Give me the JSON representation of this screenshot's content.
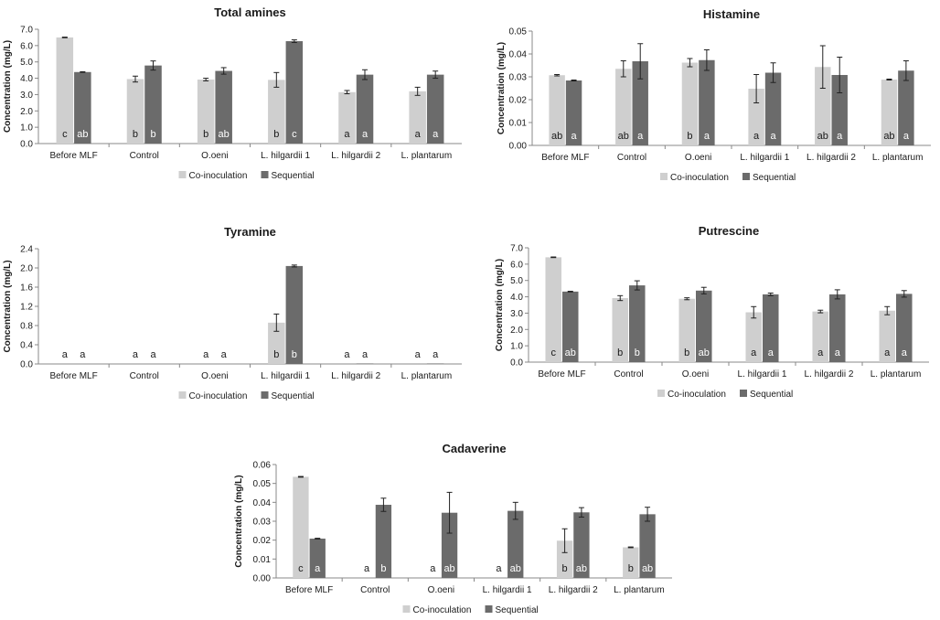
{
  "figure": {
    "legend": {
      "co": "Co-inoculation",
      "seq": "Sequential"
    }
  },
  "colors": {
    "co": "#cfcfcf",
    "seq": "#6b6b6b",
    "axis": "#888888",
    "text": "#1a1a1a",
    "letter_on_dark": "#ffffff"
  },
  "chart_data": [
    {
      "type": "bar",
      "title": "Total amines",
      "ylabel": "Concentration (mg/L)",
      "ylim": [
        0,
        7.0
      ],
      "ytick_step": 1.0,
      "ytick_decimals": 1,
      "categories": [
        "Before MLF",
        "Control",
        "O.oeni",
        "L. hilgardii 1",
        "L. hilgardii 2",
        "L. plantarum"
      ],
      "series": [
        {
          "name": "Co-inoculation",
          "values": [
            6.5,
            3.95,
            3.92,
            3.9,
            3.15,
            3.2
          ],
          "errors": [
            0.02,
            0.18,
            0.08,
            0.45,
            0.1,
            0.25
          ],
          "letters": [
            "c",
            "b",
            "b",
            "b",
            "a",
            "a"
          ]
        },
        {
          "name": "Sequential",
          "values": [
            4.38,
            4.78,
            4.45,
            6.27,
            4.22,
            4.22
          ],
          "errors": [
            0.02,
            0.28,
            0.2,
            0.08,
            0.3,
            0.22
          ],
          "letters": [
            "ab",
            "b",
            "ab",
            "c",
            "a",
            "a"
          ]
        }
      ]
    },
    {
      "type": "bar",
      "title": "Histamine",
      "ylabel": "Concentration (mg/L)",
      "ylim": [
        0,
        0.05
      ],
      "ytick_step": 0.01,
      "ytick_decimals": 2,
      "categories": [
        "Before MLF",
        "Control",
        "O.oeni",
        "L. hilgardii 1",
        "L. hilgardii 2",
        "L. plantarum"
      ],
      "series": [
        {
          "name": "Co-inoculation",
          "values": [
            0.0307,
            0.0335,
            0.0362,
            0.0248,
            0.0343,
            0.0288
          ],
          "errors": [
            0.0003,
            0.0035,
            0.0018,
            0.0062,
            0.0093,
            0.0002
          ],
          "letters": [
            "ab",
            "ab",
            "b",
            "a",
            "ab",
            "ab"
          ]
        },
        {
          "name": "Sequential",
          "values": [
            0.0284,
            0.0368,
            0.0373,
            0.0318,
            0.0308,
            0.0327
          ],
          "errors": [
            0.0002,
            0.0077,
            0.0045,
            0.0043,
            0.0078,
            0.0043
          ],
          "letters": [
            "a",
            "a",
            "a",
            "a",
            "a",
            "a"
          ]
        }
      ]
    },
    {
      "type": "bar",
      "title": "Tyramine",
      "ylabel": "Concentration (mg/L)",
      "ylim": [
        0,
        2.4
      ],
      "ytick_step": 0.4,
      "ytick_decimals": 1,
      "categories": [
        "Before MLF",
        "Control",
        "O.oeni",
        "L. hilgardii 1",
        "L. hilgardii 2",
        "L. plantarum"
      ],
      "series": [
        {
          "name": "Co-inoculation",
          "values": [
            0,
            0,
            0,
            0.86,
            0,
            0
          ],
          "errors": [
            0,
            0,
            0,
            0.18,
            0,
            0
          ],
          "letters": [
            "a",
            "a",
            "a",
            "b",
            "a",
            "a"
          ]
        },
        {
          "name": "Sequential",
          "values": [
            0,
            0,
            0,
            2.04,
            0.01,
            0.01
          ],
          "errors": [
            0,
            0,
            0,
            0.02,
            0,
            0
          ],
          "letters": [
            "a",
            "a",
            "a",
            "b",
            "a",
            "a"
          ]
        }
      ]
    },
    {
      "type": "bar",
      "title": "Putrescine",
      "ylabel": "Concentration (mg/L)",
      "ylim": [
        0,
        7.0
      ],
      "ytick_step": 1.0,
      "ytick_decimals": 1,
      "categories": [
        "Before MLF",
        "Control",
        "O.oeni",
        "L. hilgardii 1",
        "L. hilgardii 2",
        "L. plantarum"
      ],
      "series": [
        {
          "name": "Co-inoculation",
          "values": [
            6.42,
            3.92,
            3.88,
            3.05,
            3.1,
            3.15
          ],
          "errors": [
            0.02,
            0.15,
            0.06,
            0.35,
            0.08,
            0.25
          ],
          "letters": [
            "c",
            "b",
            "b",
            "a",
            "a",
            "a"
          ]
        },
        {
          "name": "Sequential",
          "values": [
            4.32,
            4.7,
            4.38,
            4.15,
            4.15,
            4.18
          ],
          "errors": [
            0.02,
            0.28,
            0.2,
            0.08,
            0.28,
            0.2
          ],
          "letters": [
            "ab",
            "b",
            "ab",
            "a",
            "a",
            "a"
          ]
        }
      ]
    },
    {
      "type": "bar",
      "title": "Cadaverine",
      "ylabel": "Concentration (mg/L)",
      "ylim": [
        0,
        0.06
      ],
      "ytick_step": 0.01,
      "ytick_decimals": 2,
      "categories": [
        "Before MLF",
        "Control",
        "O.oeni",
        "L. hilgardii 1",
        "L. hilgardii 2",
        "L. plantarum"
      ],
      "series": [
        {
          "name": "Co-inoculation",
          "values": [
            0.0535,
            0,
            0,
            0,
            0.0197,
            0.0162
          ],
          "errors": [
            0.0002,
            0,
            0,
            0,
            0.0063,
            0.0002
          ],
          "letters": [
            "c",
            "a",
            "a",
            "a",
            "b",
            "b"
          ]
        },
        {
          "name": "Sequential",
          "values": [
            0.0208,
            0.0387,
            0.0345,
            0.0355,
            0.0347,
            0.0337
          ],
          "errors": [
            0.0002,
            0.0035,
            0.0108,
            0.0045,
            0.0025,
            0.0037
          ],
          "letters": [
            "a",
            "b",
            "ab",
            "ab",
            "ab",
            "ab"
          ]
        }
      ]
    }
  ]
}
